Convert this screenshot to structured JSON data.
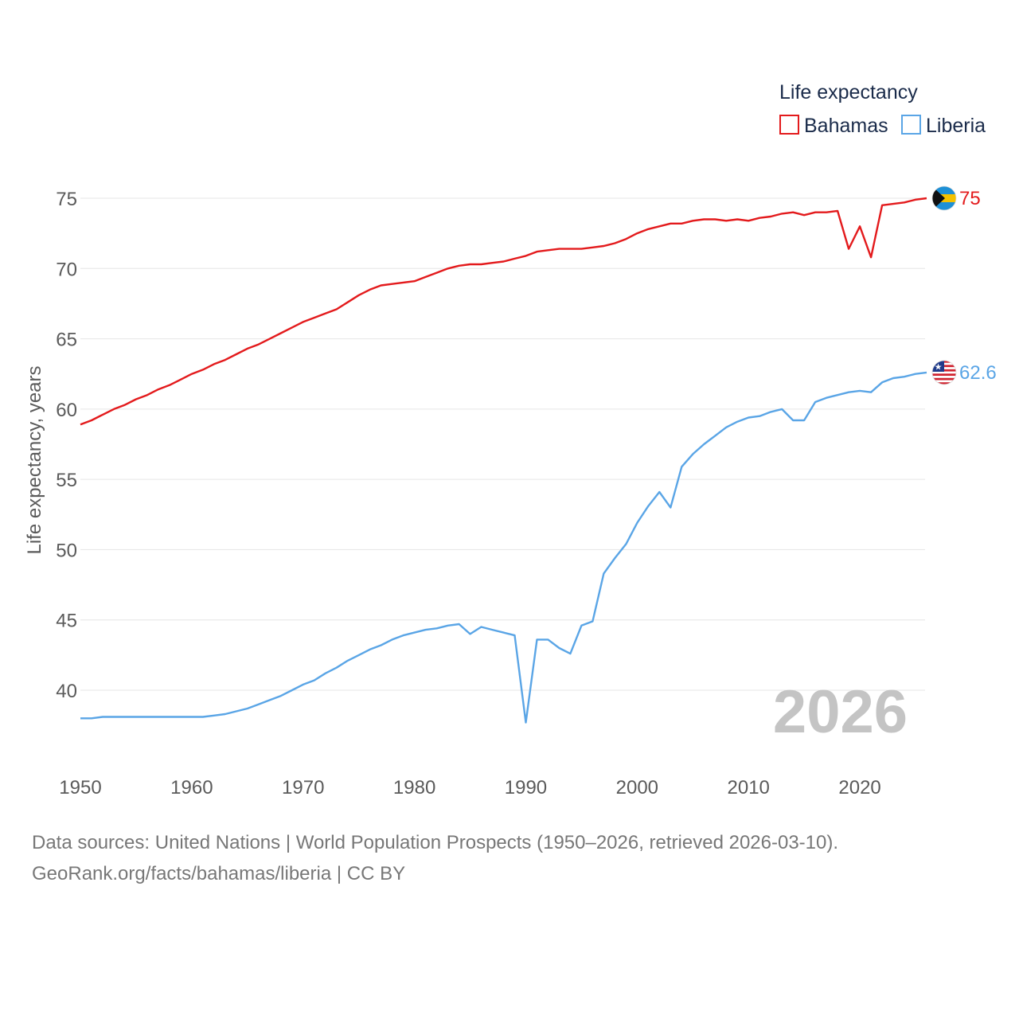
{
  "chart_data": {
    "type": "line",
    "legend_title": "Life expectancy",
    "ylabel": "Life expectancy, years",
    "xlabel": "",
    "year_label": "2026",
    "xlim": [
      1950,
      2026
    ],
    "ylim": [
      36,
      78
    ],
    "x_ticks": [
      1950,
      1960,
      1970,
      1980,
      1990,
      2000,
      2010,
      2020
    ],
    "y_ticks": [
      40,
      45,
      50,
      55,
      60,
      65,
      70,
      75
    ],
    "legend_position": "top-right",
    "x": [
      1950,
      1951,
      1952,
      1953,
      1954,
      1955,
      1956,
      1957,
      1958,
      1959,
      1960,
      1961,
      1962,
      1963,
      1964,
      1965,
      1966,
      1967,
      1968,
      1969,
      1970,
      1971,
      1972,
      1973,
      1974,
      1975,
      1976,
      1977,
      1978,
      1979,
      1980,
      1981,
      1982,
      1983,
      1984,
      1985,
      1986,
      1987,
      1988,
      1989,
      1990,
      1991,
      1992,
      1993,
      1994,
      1995,
      1996,
      1997,
      1998,
      1999,
      2000,
      2001,
      2002,
      2003,
      2004,
      2005,
      2006,
      2007,
      2008,
      2009,
      2010,
      2011,
      2012,
      2013,
      2014,
      2015,
      2016,
      2017,
      2018,
      2019,
      2020,
      2021,
      2022,
      2023,
      2024,
      2025,
      2026
    ],
    "series": [
      {
        "name": "Bahamas",
        "color": "#e31a1c",
        "end_label": "75",
        "flag": "bahamas-flag-icon",
        "values": [
          58.9,
          59.2,
          59.6,
          60.0,
          60.3,
          60.7,
          61.0,
          61.4,
          61.7,
          62.1,
          62.5,
          62.8,
          63.2,
          63.5,
          63.9,
          64.3,
          64.6,
          65.0,
          65.4,
          65.8,
          66.2,
          66.5,
          66.8,
          67.1,
          67.6,
          68.1,
          68.5,
          68.8,
          68.9,
          69.0,
          69.1,
          69.4,
          69.7,
          70.0,
          70.2,
          70.3,
          70.3,
          70.4,
          70.5,
          70.7,
          70.9,
          71.2,
          71.3,
          71.4,
          71.4,
          71.4,
          71.5,
          71.6,
          71.8,
          72.1,
          72.5,
          72.8,
          73.0,
          73.2,
          73.2,
          73.4,
          73.5,
          73.5,
          73.4,
          73.5,
          73.4,
          73.6,
          73.7,
          73.9,
          74.0,
          73.8,
          74.0,
          74.0,
          74.1,
          71.4,
          73.0,
          70.8,
          74.5,
          74.6,
          74.7,
          74.9,
          75.0
        ]
      },
      {
        "name": "Liberia",
        "color": "#5aa5e6",
        "end_label": "62.6",
        "flag": "liberia-flag-icon",
        "values": [
          38.0,
          38.0,
          38.1,
          38.1,
          38.1,
          38.1,
          38.1,
          38.1,
          38.1,
          38.1,
          38.1,
          38.1,
          38.2,
          38.3,
          38.5,
          38.7,
          39.0,
          39.3,
          39.6,
          40.0,
          40.4,
          40.7,
          41.2,
          41.6,
          42.1,
          42.5,
          42.9,
          43.2,
          43.6,
          43.9,
          44.1,
          44.3,
          44.4,
          44.6,
          44.7,
          44.0,
          44.5,
          44.3,
          44.1,
          43.9,
          37.7,
          43.6,
          43.6,
          43.0,
          42.6,
          44.6,
          44.9,
          48.3,
          49.4,
          50.4,
          51.9,
          53.1,
          54.1,
          53.0,
          55.9,
          56.8,
          57.5,
          58.1,
          58.7,
          59.1,
          59.4,
          59.5,
          59.8,
          60.0,
          59.2,
          59.2,
          60.5,
          60.8,
          61.0,
          61.2,
          61.3,
          61.2,
          61.9,
          62.2,
          62.3,
          62.5,
          62.6
        ]
      }
    ]
  },
  "footer": {
    "sources": "Data sources: United Nations | World Population Prospects (1950–2026, retrieved 2026-03-10).",
    "credit": "GeoRank.org/facts/bahamas/liberia | CC BY"
  }
}
